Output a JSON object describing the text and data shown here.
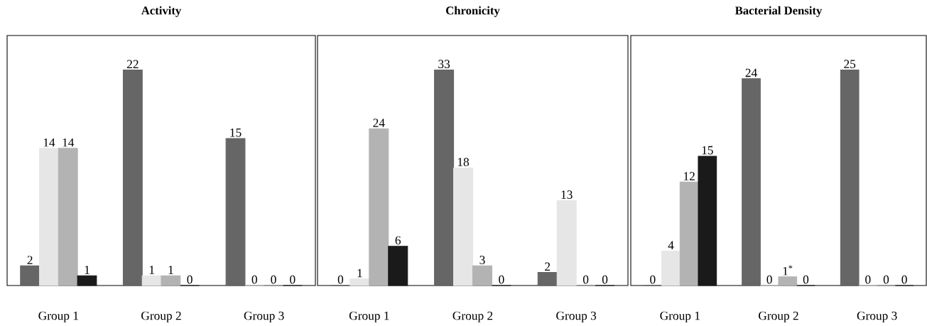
{
  "chart_data": [
    {
      "type": "bar",
      "title": "Activity",
      "categories": [
        "Group 1",
        "Group 2",
        "Group 3"
      ],
      "data_labels": true,
      "series": [
        {
          "color": "#666666",
          "values": [
            2,
            22,
            15
          ]
        },
        {
          "color": "#e6e6e6",
          "values": [
            14,
            1,
            0
          ]
        },
        {
          "color": "#b3b3b3",
          "values": [
            14,
            1,
            0
          ]
        },
        {
          "color": "#1a1a1a",
          "values": [
            1,
            0,
            0
          ]
        }
      ]
    },
    {
      "type": "bar",
      "title": "Chronicity",
      "categories": [
        "Group 1",
        "Group 2",
        "Group 3"
      ],
      "data_labels": true,
      "series": [
        {
          "color": "#666666",
          "values": [
            0,
            33,
            2
          ]
        },
        {
          "color": "#e6e6e6",
          "values": [
            1,
            18,
            13
          ]
        },
        {
          "color": "#b3b3b3",
          "values": [
            24,
            3,
            0
          ]
        },
        {
          "color": "#1a1a1a",
          "values": [
            6,
            0,
            0
          ]
        }
      ]
    },
    {
      "type": "bar",
      "title": "Bacterial Density",
      "categories": [
        "Group 1",
        "Group 2",
        "Group 3"
      ],
      "data_labels": true,
      "series": [
        {
          "color": "#666666",
          "values": [
            0,
            24,
            25
          ]
        },
        {
          "color": "#e6e6e6",
          "values": [
            4,
            0,
            0
          ]
        },
        {
          "color": "#b3b3b3",
          "values": [
            12,
            1,
            0
          ],
          "value_labels": [
            "12",
            "1$^{*}$",
            "0"
          ]
        },
        {
          "color": "#1a1a1a",
          "values": [
            15,
            0,
            0
          ]
        }
      ]
    }
  ]
}
